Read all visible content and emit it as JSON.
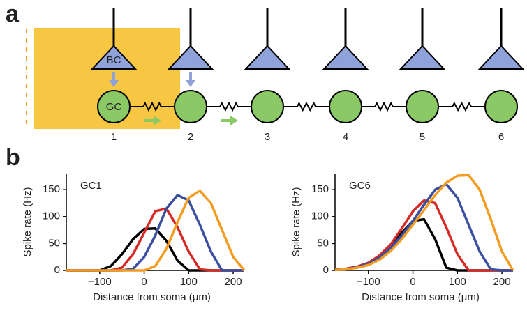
{
  "panel_a": {
    "label": "a",
    "bc_label": "BC",
    "gc_label": "GC",
    "cell_numbers": [
      "1",
      "2",
      "3",
      "4",
      "5",
      "6"
    ]
  },
  "panel_b": {
    "label": "b"
  },
  "chart_data": [
    {
      "type": "line",
      "title": "GC1",
      "x_label": "Distance from soma (μm)",
      "y_label": "Spike rate (Hz)",
      "x": [
        -175,
        -150,
        -125,
        -100,
        -75,
        -50,
        -25,
        0,
        25,
        50,
        75,
        100,
        125,
        150,
        175,
        200,
        225
      ],
      "series": [
        {
          "color": "#000000",
          "values": [
            0,
            0,
            0,
            0,
            8,
            30,
            58,
            77,
            78,
            55,
            18,
            0,
            0,
            0,
            0,
            0,
            0
          ]
        },
        {
          "color": "#d62a27",
          "values": [
            0,
            0,
            0,
            0,
            0,
            5,
            30,
            70,
            110,
            115,
            80,
            35,
            2,
            0,
            0,
            0,
            0
          ]
        },
        {
          "color": "#3a4fa0",
          "values": [
            0,
            0,
            0,
            0,
            0,
            0,
            3,
            25,
            65,
            115,
            140,
            130,
            85,
            35,
            0,
            0,
            0
          ]
        },
        {
          "color": "#f39c1f",
          "values": [
            0,
            0,
            0,
            0,
            0,
            0,
            0,
            0,
            8,
            40,
            90,
            135,
            148,
            125,
            75,
            25,
            0
          ]
        }
      ],
      "xlim": [
        -175,
        225
      ],
      "ylim": [
        0,
        180
      ],
      "xticks": [
        {
          "value": -100,
          "label": "−100"
        },
        0,
        100,
        200
      ],
      "yticks": [
        0,
        50,
        100,
        150
      ]
    },
    {
      "type": "line",
      "title": "GC6",
      "x_label": "Distance from soma (μm)",
      "y_label": "Spike rate (Hz)",
      "x": [
        -175,
        -150,
        -125,
        -100,
        -75,
        -50,
        -25,
        0,
        25,
        50,
        75,
        100,
        125,
        150,
        175,
        200,
        225
      ],
      "series": [
        {
          "color": "#000000",
          "values": [
            1,
            3,
            7,
            14,
            27,
            45,
            70,
            92,
            95,
            58,
            5,
            0,
            0,
            0,
            0,
            0,
            0
          ]
        },
        {
          "color": "#d62a27",
          "values": [
            1,
            3,
            7,
            14,
            28,
            48,
            78,
            110,
            130,
            125,
            80,
            30,
            0,
            0,
            0,
            0,
            0
          ]
        },
        {
          "color": "#3a4fa0",
          "values": [
            1,
            2,
            6,
            12,
            24,
            42,
            65,
            92,
            122,
            150,
            160,
            135,
            85,
            35,
            2,
            0,
            0
          ]
        },
        {
          "color": "#f39c1f",
          "values": [
            1,
            2,
            5,
            10,
            20,
            36,
            58,
            85,
            112,
            140,
            163,
            176,
            177,
            150,
            95,
            35,
            0
          ]
        }
      ],
      "xlim": [
        -175,
        225
      ],
      "ylim": [
        0,
        180
      ],
      "xticks": [
        {
          "value": -100,
          "label": "−100"
        },
        0,
        100,
        200
      ],
      "yticks": [
        0,
        50,
        100,
        150
      ]
    }
  ]
}
